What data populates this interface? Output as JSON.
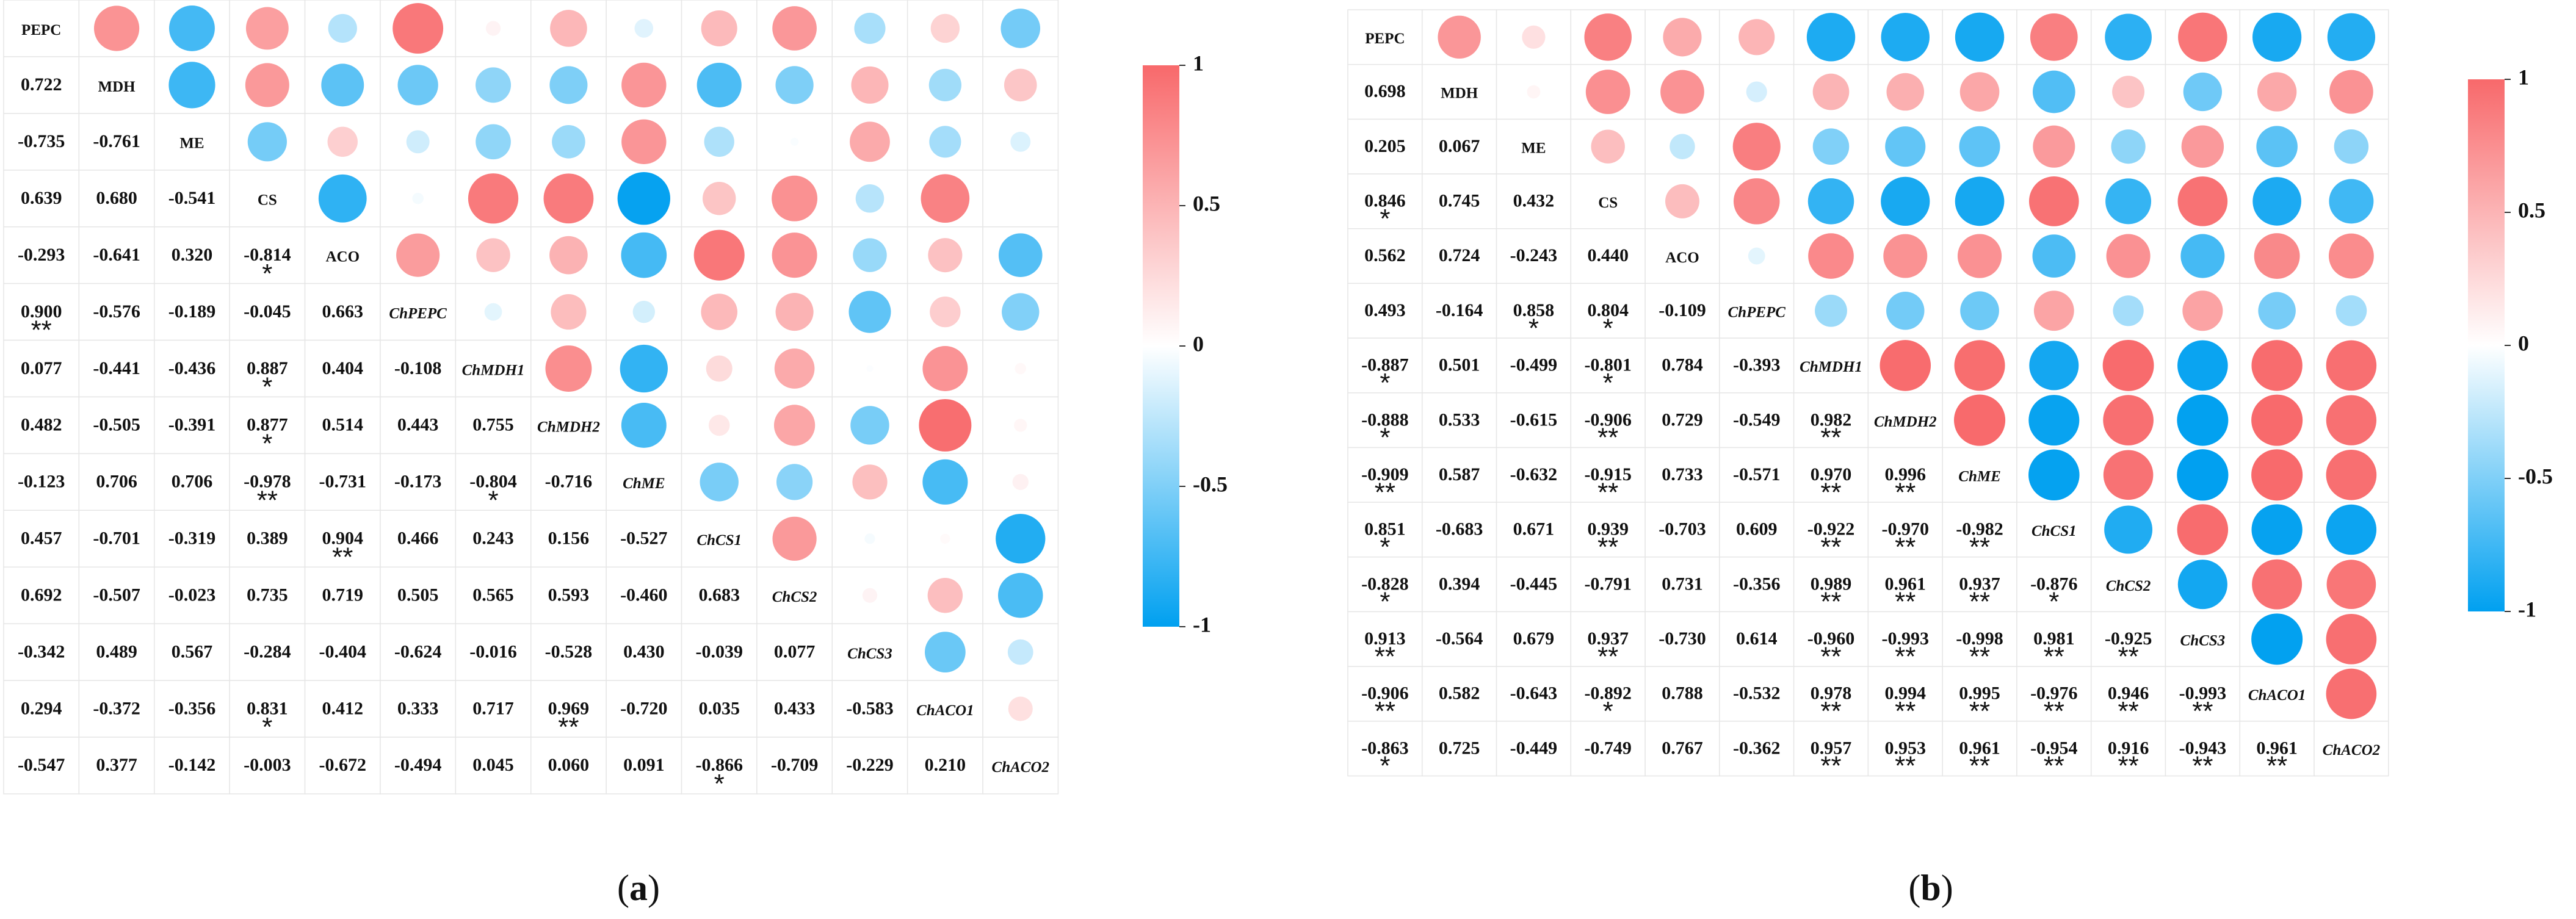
{
  "chart_data": [
    {
      "type": "correlogram",
      "caption": {
        "open": "(",
        "letter": "a",
        "close": ")"
      },
      "labels": [
        "PEPC",
        "MDH",
        "ME",
        "CS",
        "ACO",
        "ChPEPC",
        "ChMDH1",
        "ChMDH2",
        "ChME",
        "ChCS1",
        "ChCS2",
        "ChCS3",
        "ChACO1",
        "ChACO2"
      ],
      "italic_labels": [
        false,
        false,
        false,
        false,
        false,
        true,
        true,
        true,
        true,
        true,
        true,
        true,
        true,
        true
      ],
      "colorbar": {
        "ticks": [
          "1",
          "0.5",
          "0",
          "-0.5",
          "-1"
        ],
        "range": [
          -1,
          1
        ],
        "high_color": "#F8696B",
        "mid_color": "#FFFFFF",
        "low_color": "#00A0F0"
      },
      "lower": [
        [],
        [
          "0.722"
        ],
        [
          "-0.735",
          "-0.761"
        ],
        [
          "0.639",
          "0.680",
          "-0.541"
        ],
        [
          "-0.293",
          "-0.641",
          "0.320",
          "-0.814"
        ],
        [
          "0.900",
          "-0.576",
          "-0.189",
          "-0.045",
          "0.663"
        ],
        [
          "0.077",
          "-0.441",
          "-0.436",
          "0.887",
          "0.404",
          "-0.108"
        ],
        [
          "0.482",
          "-0.505",
          "-0.391",
          "0.877",
          "0.514",
          "0.443",
          "0.755"
        ],
        [
          "-0.123",
          "0.706",
          "0.706",
          "-0.978",
          "-0.731",
          "-0.173",
          "-0.804",
          "-0.716"
        ],
        [
          "0.457",
          "-0.701",
          "-0.319",
          "0.389",
          "0.904",
          "0.466",
          "0.243",
          "0.156",
          "-0.527"
        ],
        [
          "0.692",
          "-0.507",
          "-0.023",
          "0.735",
          "0.719",
          "0.505",
          "0.565",
          "0.593",
          "-0.460",
          "0.683"
        ],
        [
          "-0.342",
          "0.489",
          "0.567",
          "-0.284",
          "-0.404",
          "-0.624",
          "-0.016",
          "-0.528",
          "0.430",
          "-0.039",
          "0.077"
        ],
        [
          "0.294",
          "-0.372",
          "-0.356",
          "0.831",
          "0.412",
          "0.333",
          "0.717",
          "0.969",
          "-0.720",
          "0.035",
          "0.433",
          "-0.583"
        ],
        [
          "-0.547",
          "0.377",
          "-0.142",
          "-0.003",
          "-0.672",
          "-0.494",
          "0.045",
          "0.060",
          "0.091",
          "-0.866",
          "-0.709",
          "-0.229",
          "0.210"
        ]
      ],
      "stars": [
        [],
        [
          ""
        ],
        [
          "",
          ""
        ],
        [
          "",
          "",
          ""
        ],
        [
          "",
          "",
          "",
          "*"
        ],
        [
          "**",
          "",
          "",
          "",
          ""
        ],
        [
          "",
          "",
          "",
          "*",
          "",
          ""
        ],
        [
          "",
          "",
          "",
          "*",
          "",
          "",
          ""
        ],
        [
          "",
          "",
          "",
          "**",
          "",
          "",
          "*",
          ""
        ],
        [
          "",
          "",
          "",
          "",
          "**",
          "",
          "",
          "",
          ""
        ],
        [
          "",
          "",
          "",
          "",
          "",
          "",
          "",
          "",
          "",
          ""
        ],
        [
          "",
          "",
          "",
          "",
          "",
          "",
          "",
          "",
          "",
          "",
          ""
        ],
        [
          "",
          "",
          "",
          "*",
          "",
          "",
          "",
          "**",
          "",
          "",
          "",
          ""
        ],
        [
          "",
          "",
          "",
          "",
          "",
          "",
          "",
          "",
          "",
          "*",
          "",
          "",
          ""
        ]
      ],
      "upper": [
        [
          0.722,
          -0.735,
          0.639,
          -0.293,
          0.9,
          0.077,
          0.482,
          -0.123,
          0.457,
          0.692,
          -0.342,
          0.294,
          -0.547
        ],
        [
          -0.761,
          0.68,
          -0.641,
          -0.576,
          -0.441,
          -0.505,
          0.706,
          -0.701,
          -0.507,
          0.489,
          -0.372,
          0.377
        ],
        [
          -0.541,
          0.32,
          -0.189,
          -0.436,
          -0.391,
          0.706,
          -0.319,
          -0.023,
          0.567,
          -0.356,
          -0.142
        ],
        [
          -0.814,
          -0.045,
          0.887,
          0.877,
          -0.978,
          0.389,
          0.735,
          -0.284,
          0.831,
          -0.003
        ],
        [
          0.663,
          0.404,
          0.514,
          -0.731,
          0.904,
          0.719,
          -0.404,
          0.412,
          -0.672
        ],
        [
          -0.108,
          0.443,
          -0.173,
          0.466,
          0.505,
          -0.624,
          0.333,
          -0.494
        ],
        [
          0.755,
          -0.804,
          0.243,
          0.565,
          -0.016,
          0.717,
          0.045
        ],
        [
          -0.716,
          0.156,
          0.593,
          -0.528,
          0.969,
          0.06
        ],
        [
          -0.527,
          -0.46,
          0.43,
          -0.72,
          0.091
        ],
        [
          0.683,
          -0.039,
          0.035,
          -0.866
        ],
        [
          0.077,
          0.433,
          -0.709
        ],
        [
          -0.583,
          -0.229
        ],
        [
          0.21
        ],
        []
      ]
    },
    {
      "type": "correlogram",
      "caption": {
        "open": "(",
        "letter": "b",
        "close": ")"
      },
      "labels": [
        "PEPC",
        "MDH",
        "ME",
        "CS",
        "ACO",
        "ChPEPC",
        "ChMDH1",
        "ChMDH2",
        "ChME",
        "ChCS1",
        "ChCS2",
        "ChCS3",
        "ChACO1",
        "ChACO2"
      ],
      "italic_labels": [
        false,
        false,
        false,
        false,
        false,
        true,
        true,
        true,
        true,
        true,
        true,
        true,
        true,
        true
      ],
      "colorbar": {
        "ticks": [
          "1",
          "0.5",
          "0",
          "-0.5",
          "-1"
        ],
        "range": [
          -1,
          1
        ],
        "high_color": "#F8696B",
        "mid_color": "#FFFFFF",
        "low_color": "#00A0F0"
      },
      "lower": [
        [],
        [
          "0.698"
        ],
        [
          "0.205",
          "0.067"
        ],
        [
          "0.846",
          "0.745",
          "0.432"
        ],
        [
          "0.562",
          "0.724",
          "-0.243",
          "0.440"
        ],
        [
          "0.493",
          "-0.164",
          "0.858",
          "0.804",
          "-0.109"
        ],
        [
          "-0.887",
          "0.501",
          "-0.499",
          "-0.801",
          "0.784",
          "-0.393"
        ],
        [
          "-0.888",
          "0.533",
          "-0.615",
          "-0.906",
          "0.729",
          "-0.549",
          "0.982"
        ],
        [
          "-0.909",
          "0.587",
          "-0.632",
          "-0.915",
          "0.733",
          "-0.571",
          "0.970",
          "0.996"
        ],
        [
          "0.851",
          "-0.683",
          "0.671",
          "0.939",
          "-0.703",
          "0.609",
          "-0.922",
          "-0.970",
          "-0.982"
        ],
        [
          "-0.828",
          "0.394",
          "-0.445",
          "-0.791",
          "0.731",
          "-0.356",
          "0.989",
          "0.961",
          "0.937",
          "-0.876"
        ],
        [
          "0.913",
          "-0.564",
          "0.679",
          "0.937",
          "-0.730",
          "0.614",
          "-0.960",
          "-0.993",
          "-0.998",
          "0.981",
          "-0.925"
        ],
        [
          "-0.906",
          "0.582",
          "-0.643",
          "-0.892",
          "0.788",
          "-0.532",
          "0.978",
          "0.994",
          "0.995",
          "-0.976",
          "0.946",
          "-0.993"
        ],
        [
          "-0.863",
          "0.725",
          "-0.449",
          "-0.749",
          "0.767",
          "-0.362",
          "0.957",
          "0.953",
          "0.961",
          "-0.954",
          "0.916",
          "-0.943",
          "0.961"
        ]
      ],
      "stars": [
        [],
        [
          ""
        ],
        [
          "",
          ""
        ],
        [
          "*",
          "",
          ""
        ],
        [
          "",
          "",
          "",
          ""
        ],
        [
          "",
          "",
          "*",
          "*",
          ""
        ],
        [
          "*",
          "",
          "",
          "*",
          "",
          ""
        ],
        [
          "*",
          "",
          "",
          "**",
          "",
          "",
          "**"
        ],
        [
          "**",
          "",
          "",
          "**",
          "",
          "",
          "**",
          "**"
        ],
        [
          "*",
          "",
          "",
          "**",
          "",
          "",
          "**",
          "**",
          "**"
        ],
        [
          "*",
          "",
          "",
          "",
          "",
          "",
          "**",
          "**",
          "**",
          "*"
        ],
        [
          "**",
          "",
          "",
          "**",
          "",
          "",
          "**",
          "**",
          "**",
          "**",
          "**"
        ],
        [
          "**",
          "",
          "",
          "*",
          "",
          "",
          "**",
          "**",
          "**",
          "**",
          "**",
          "**"
        ],
        [
          "*",
          "",
          "",
          "",
          "",
          "",
          "**",
          "**",
          "**",
          "**",
          "**",
          "**",
          "**"
        ]
      ],
      "upper": [
        [
          0.698,
          0.205,
          0.846,
          0.562,
          0.493,
          -0.887,
          -0.888,
          -0.909,
          0.851,
          -0.828,
          0.913,
          -0.906,
          -0.863
        ],
        [
          0.067,
          0.745,
          0.724,
          -0.164,
          0.501,
          0.533,
          0.587,
          -0.683,
          0.394,
          -0.564,
          0.582,
          0.725
        ],
        [
          0.432,
          -0.243,
          0.858,
          -0.499,
          -0.615,
          -0.632,
          0.671,
          -0.445,
          0.679,
          -0.643,
          -0.449
        ],
        [
          0.44,
          0.804,
          -0.801,
          -0.906,
          -0.915,
          0.939,
          -0.791,
          0.937,
          -0.892,
          -0.749
        ],
        [
          -0.109,
          0.784,
          0.729,
          0.733,
          -0.703,
          0.731,
          -0.73,
          0.788,
          0.767
        ],
        [
          -0.393,
          -0.549,
          -0.571,
          0.609,
          -0.356,
          0.614,
          -0.532,
          -0.362
        ],
        [
          0.982,
          0.97,
          -0.922,
          0.989,
          -0.96,
          0.978,
          0.957
        ],
        [
          0.996,
          -0.97,
          0.961,
          -0.993,
          0.994,
          0.953
        ],
        [
          -0.982,
          0.937,
          -0.998,
          0.995,
          0.961
        ],
        [
          -0.876,
          0.981,
          -0.976,
          -0.954
        ],
        [
          -0.925,
          0.946,
          0.916
        ],
        [
          -0.993,
          0.961
        ],
        [
          0.961
        ],
        []
      ]
    }
  ]
}
